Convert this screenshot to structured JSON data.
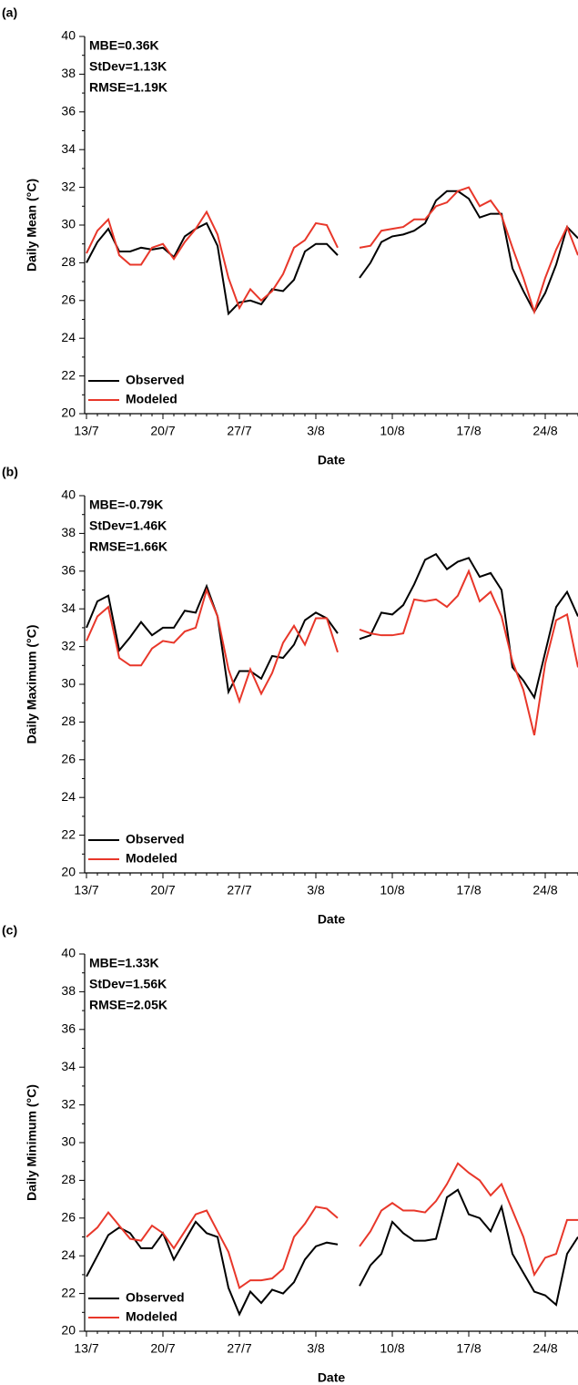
{
  "chart_data": [
    {
      "type": "line",
      "panel_label": "(a)",
      "y_label": "Daily Mean (°C)",
      "x_label": "Date",
      "annotations": [
        "MBE=0.36K",
        "StDev=1.13K",
        "RMSE=1.19K"
      ],
      "categories": [
        "13/7",
        null,
        null,
        null,
        null,
        null,
        null,
        "20/7",
        null,
        null,
        null,
        null,
        null,
        null,
        "27/7",
        null,
        null,
        null,
        null,
        null,
        null,
        "3/8",
        null,
        null,
        null,
        null,
        null,
        null,
        "10/8",
        null,
        null,
        null,
        null,
        null,
        null,
        "17/8",
        null,
        null,
        null,
        null,
        null,
        null,
        "24/8",
        null,
        null,
        null
      ],
      "series": [
        {
          "name": "Observed",
          "color": "#000000",
          "values": [
            28.0,
            29.1,
            29.8,
            28.6,
            28.6,
            28.8,
            28.7,
            28.8,
            28.3,
            29.4,
            29.8,
            30.1,
            28.9,
            25.3,
            25.9,
            26.0,
            25.8,
            26.6,
            26.5,
            27.1,
            28.6,
            29.0,
            29.0,
            28.4,
            null,
            27.2,
            28.0,
            29.1,
            29.4,
            29.5,
            29.7,
            30.1,
            31.3,
            31.8,
            31.8,
            31.4,
            30.4,
            30.6,
            30.6,
            27.7,
            26.5,
            25.4,
            26.4,
            27.9,
            29.9,
            29.3
          ]
        },
        {
          "name": "Modeled",
          "color": "#e8372a",
          "values": [
            28.5,
            29.7,
            30.3,
            28.4,
            27.9,
            27.9,
            28.8,
            29.0,
            28.2,
            29.1,
            29.8,
            30.7,
            29.5,
            27.2,
            25.6,
            26.6,
            26.0,
            26.5,
            27.4,
            28.8,
            29.2,
            30.1,
            30.0,
            28.8,
            null,
            28.8,
            28.9,
            29.7,
            29.8,
            29.9,
            30.3,
            30.3,
            31.0,
            31.2,
            31.8,
            32.0,
            31.0,
            31.3,
            30.5,
            28.8,
            27.2,
            25.4,
            27.2,
            28.7,
            29.9,
            28.4
          ]
        }
      ],
      "ylim": [
        20,
        40
      ],
      "yticks": [
        20,
        22,
        24,
        26,
        28,
        30,
        32,
        34,
        36,
        38,
        40
      ],
      "legend": "lower left"
    },
    {
      "type": "line",
      "panel_label": "(b)",
      "y_label": "Daily Maximum (°C)",
      "x_label": "Date",
      "annotations": [
        "MBE=-0.79K",
        "StDev=1.46K",
        "RMSE=1.66K"
      ],
      "categories": [
        "13/7",
        null,
        null,
        null,
        null,
        null,
        null,
        "20/7",
        null,
        null,
        null,
        null,
        null,
        null,
        "27/7",
        null,
        null,
        null,
        null,
        null,
        null,
        "3/8",
        null,
        null,
        null,
        null,
        null,
        null,
        "10/8",
        null,
        null,
        null,
        null,
        null,
        null,
        "17/8",
        null,
        null,
        null,
        null,
        null,
        null,
        "24/8",
        null,
        null,
        null
      ],
      "series": [
        {
          "name": "Observed",
          "color": "#000000",
          "values": [
            33.0,
            34.4,
            34.7,
            31.8,
            32.5,
            33.3,
            32.6,
            33.0,
            33.0,
            33.9,
            33.8,
            35.2,
            33.6,
            29.6,
            30.7,
            30.7,
            30.3,
            31.5,
            31.4,
            32.1,
            33.4,
            33.8,
            33.5,
            32.7,
            null,
            32.4,
            32.6,
            33.8,
            33.7,
            34.2,
            35.3,
            36.6,
            36.9,
            36.1,
            36.5,
            36.7,
            35.7,
            35.9,
            35.0,
            30.9,
            30.2,
            29.3,
            31.7,
            34.1,
            34.9,
            33.6
          ]
        },
        {
          "name": "Modeled",
          "color": "#e8372a",
          "values": [
            32.3,
            33.6,
            34.1,
            31.4,
            31.0,
            31.0,
            31.9,
            32.3,
            32.2,
            32.8,
            33.0,
            35.0,
            33.6,
            30.8,
            29.1,
            30.8,
            29.5,
            30.6,
            32.2,
            33.1,
            32.1,
            33.5,
            33.5,
            31.7,
            null,
            32.9,
            32.7,
            32.6,
            32.6,
            32.7,
            34.5,
            34.4,
            34.5,
            34.1,
            34.7,
            36.0,
            34.4,
            34.9,
            33.6,
            31.2,
            29.7,
            27.3,
            31.1,
            33.4,
            33.7,
            30.9
          ]
        }
      ],
      "ylim": [
        20,
        40
      ],
      "yticks": [
        20,
        22,
        24,
        26,
        28,
        30,
        32,
        34,
        36,
        38,
        40
      ],
      "legend": "lower left"
    },
    {
      "type": "line",
      "panel_label": "(c)",
      "y_label": "Daily Minimum (°C)",
      "x_label": "Date",
      "annotations": [
        "MBE=1.33K",
        "StDev=1.56K",
        "RMSE=2.05K"
      ],
      "categories": [
        "13/7",
        null,
        null,
        null,
        null,
        null,
        null,
        "20/7",
        null,
        null,
        null,
        null,
        null,
        null,
        "27/7",
        null,
        null,
        null,
        null,
        null,
        null,
        "3/8",
        null,
        null,
        null,
        null,
        null,
        null,
        "10/8",
        null,
        null,
        null,
        null,
        null,
        null,
        "17/8",
        null,
        null,
        null,
        null,
        null,
        null,
        "24/8",
        null,
        null,
        null
      ],
      "series": [
        {
          "name": "Observed",
          "color": "#000000",
          "values": [
            22.9,
            24.0,
            25.1,
            25.5,
            25.2,
            24.4,
            24.4,
            25.2,
            23.8,
            24.8,
            25.8,
            25.2,
            25.0,
            22.3,
            20.9,
            22.1,
            21.5,
            22.2,
            22.0,
            22.6,
            23.8,
            24.5,
            24.7,
            24.6,
            null,
            22.4,
            23.5,
            24.1,
            25.8,
            25.2,
            24.8,
            24.8,
            24.9,
            27.1,
            27.5,
            26.2,
            26.0,
            25.3,
            26.6,
            24.1,
            23.1,
            22.1,
            21.9,
            21.4,
            24.1,
            25.0
          ]
        },
        {
          "name": "Modeled",
          "color": "#e8372a",
          "values": [
            25.0,
            25.5,
            26.3,
            25.6,
            24.9,
            24.8,
            25.6,
            25.2,
            24.4,
            25.3,
            26.2,
            26.4,
            25.3,
            24.2,
            22.3,
            22.7,
            22.7,
            22.8,
            23.3,
            25.0,
            25.7,
            26.6,
            26.5,
            26.0,
            null,
            24.5,
            25.3,
            26.4,
            26.8,
            26.4,
            26.4,
            26.3,
            26.9,
            27.8,
            28.9,
            28.4,
            28.0,
            27.2,
            27.8,
            26.4,
            25.0,
            23.0,
            23.9,
            24.1,
            25.9,
            25.9
          ]
        }
      ],
      "ylim": [
        20,
        40
      ],
      "yticks": [
        20,
        22,
        24,
        26,
        28,
        30,
        32,
        34,
        36,
        38,
        40
      ],
      "legend": "lower left"
    }
  ]
}
